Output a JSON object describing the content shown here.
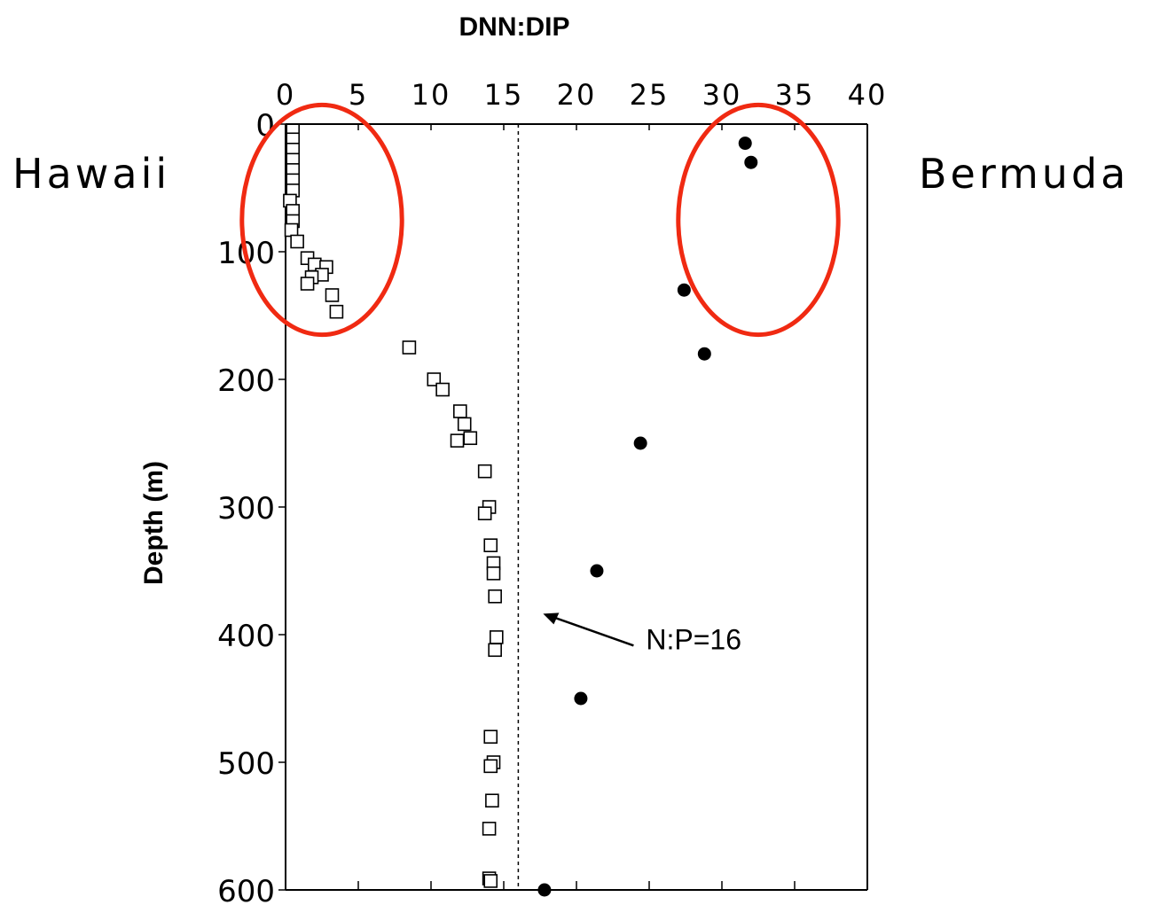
{
  "chart_data": {
    "type": "scatter",
    "title": "DNN:DIP",
    "xlabel": "DNN:DIP",
    "ylabel": "Depth (m)",
    "xlim": [
      0,
      40
    ],
    "ylim": [
      600,
      0
    ],
    "x_ticks": [
      0,
      5,
      10,
      15,
      20,
      25,
      30,
      35,
      40
    ],
    "y_ticks": [
      0,
      100,
      200,
      300,
      400,
      500,
      600
    ],
    "x_tick_labels": [
      "0",
      "5",
      "10",
      "15",
      "20",
      "25",
      "30",
      "35",
      "40"
    ],
    "y_tick_labels": [
      "0",
      "100",
      "200",
      "300",
      "400",
      "500",
      "600"
    ],
    "grid": false,
    "series": [
      {
        "name": "Hawaii",
        "marker": "open-square",
        "points": [
          {
            "x": 0.5,
            "y": 5
          },
          {
            "x": 0.5,
            "y": 12
          },
          {
            "x": 0.5,
            "y": 20
          },
          {
            "x": 0.5,
            "y": 28
          },
          {
            "x": 0.5,
            "y": 36
          },
          {
            "x": 0.5,
            "y": 44
          },
          {
            "x": 0.5,
            "y": 52
          },
          {
            "x": 0.3,
            "y": 60
          },
          {
            "x": 0.5,
            "y": 68
          },
          {
            "x": 0.5,
            "y": 76
          },
          {
            "x": 0.4,
            "y": 83
          },
          {
            "x": 0.8,
            "y": 92
          },
          {
            "x": 1.5,
            "y": 105
          },
          {
            "x": 2.0,
            "y": 110
          },
          {
            "x": 2.8,
            "y": 112
          },
          {
            "x": 2.5,
            "y": 118
          },
          {
            "x": 1.8,
            "y": 120
          },
          {
            "x": 1.5,
            "y": 125
          },
          {
            "x": 3.2,
            "y": 134
          },
          {
            "x": 3.5,
            "y": 147
          },
          {
            "x": 8.5,
            "y": 175
          },
          {
            "x": 10.2,
            "y": 200
          },
          {
            "x": 10.8,
            "y": 208
          },
          {
            "x": 12.0,
            "y": 225
          },
          {
            "x": 12.3,
            "y": 235
          },
          {
            "x": 12.7,
            "y": 246
          },
          {
            "x": 11.8,
            "y": 248
          },
          {
            "x": 13.7,
            "y": 272
          },
          {
            "x": 14.0,
            "y": 300
          },
          {
            "x": 13.7,
            "y": 305
          },
          {
            "x": 14.1,
            "y": 330
          },
          {
            "x": 14.3,
            "y": 344
          },
          {
            "x": 14.3,
            "y": 352
          },
          {
            "x": 14.4,
            "y": 370
          },
          {
            "x": 14.5,
            "y": 402
          },
          {
            "x": 14.4,
            "y": 412
          },
          {
            "x": 14.1,
            "y": 480
          },
          {
            "x": 14.3,
            "y": 500
          },
          {
            "x": 14.1,
            "y": 503
          },
          {
            "x": 14.2,
            "y": 530
          },
          {
            "x": 14.0,
            "y": 552
          },
          {
            "x": 14.0,
            "y": 591
          },
          {
            "x": 14.1,
            "y": 593
          }
        ]
      },
      {
        "name": "Bermuda",
        "marker": "filled-circle",
        "points": [
          {
            "x": 31.6,
            "y": 15
          },
          {
            "x": 32.0,
            "y": 30
          },
          {
            "x": 27.4,
            "y": 130
          },
          {
            "x": 28.8,
            "y": 180
          },
          {
            "x": 24.4,
            "y": 250
          },
          {
            "x": 21.4,
            "y": 350
          },
          {
            "x": 20.3,
            "y": 450
          },
          {
            "x": 17.8,
            "y": 600
          }
        ]
      }
    ],
    "reference_line": {
      "x": 16,
      "style": "dashed"
    },
    "annotation": {
      "text": "N:P=16",
      "points_to_x": 16,
      "points_to_y": 378
    },
    "side_labels": {
      "left": "Hawaii",
      "right": "Bermuda"
    },
    "highlights": [
      {
        "target": "Hawaii",
        "x_range": [
          -3,
          8
        ],
        "depth_range": [
          -15,
          165
        ],
        "color": "#f02a12"
      },
      {
        "target": "Bermuda",
        "x_range": [
          27,
          38
        ],
        "depth_range": [
          -15,
          165
        ],
        "color": "#f02a12"
      }
    ]
  }
}
